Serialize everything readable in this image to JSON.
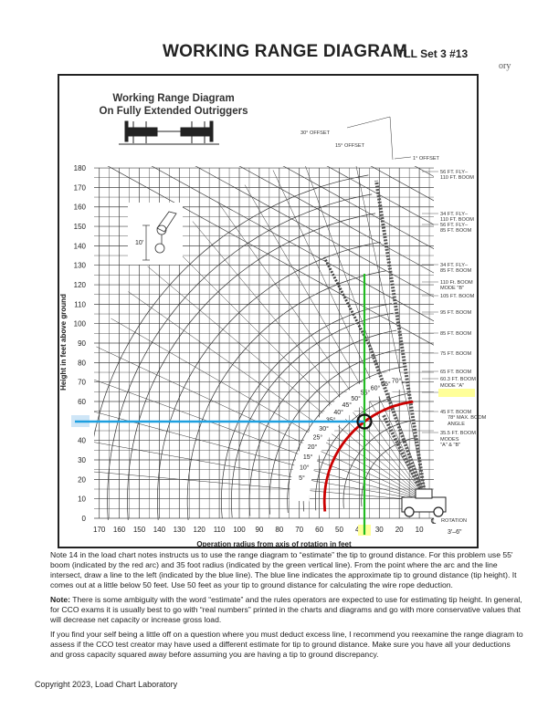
{
  "header": {
    "title": "WORKING RANGE DIAGRAM",
    "subtitle": "TLL  Set 3 #13",
    "stray_text": "ory"
  },
  "diagram": {
    "heading_line1": "Working Range Diagram",
    "heading_line2": "On Fully Extended Outriggers",
    "inset_dimension": "10'",
    "offsets": [
      "30° OFFSET",
      "15° OFFSET",
      "1° OFFSET"
    ],
    "y_axis_title": "Height in feet above ground",
    "x_axis_title": "Operation radius from axis of rotation in feet",
    "y_ticks": [
      "0",
      "10",
      "20",
      "30",
      "40",
      "50",
      "60",
      "70",
      "80",
      "90",
      "100",
      "110",
      "120",
      "130",
      "140",
      "150",
      "160",
      "170",
      "180"
    ],
    "x_ticks": [
      "170",
      "160",
      "150",
      "140",
      "130",
      "120",
      "110",
      "100",
      "90",
      "80",
      "70",
      "60",
      "50",
      "40",
      "30",
      "20",
      "10"
    ],
    "angle_labels": [
      "5°",
      "10°",
      "15°",
      "20°",
      "25°",
      "30°",
      "35°",
      "40°",
      "45°",
      "50°",
      "55°",
      "60°",
      "65°",
      "70°"
    ],
    "boom_labels": [
      "56 FT. FLY–",
      "110 FT. BOOM",
      "34 FT. FLY–",
      "110 FT. BOOM",
      "56 FT. FLY–",
      "85 FT. BOOM",
      "34 FT. FLY–",
      "85 FT. BOOM",
      "110 Ft. BOOM",
      "MODE \"B\"",
      "105 FT. BOOM",
      "95 FT. BOOM",
      "85 FT. BOOM",
      "75 FT. BOOM",
      "65 FT. BOOM",
      "60.3 FT. BOOM",
      "MODE \"A\"",
      "55 FT. BOOM",
      "45 FT. BOOM",
      "78° MAX. BOOM",
      "ANGLE",
      "35.5 FT. BOOM",
      "MODES",
      "\"A\" & \"B\""
    ],
    "rotation_label": "ROTATION",
    "centerline_symbol": "℄",
    "dimension_3_6": "3'–6\"",
    "highlight_color": "#ffff99",
    "annotations": {
      "boom_length_ft": 55,
      "radius_ft": 35,
      "tip_height_ft": 50,
      "red_arc_color": "#cc0000",
      "green_line_color": "#22bb22",
      "blue_line_color": "#1ea0e0"
    }
  },
  "notes": {
    "p1": "Note 14 in the load chart notes instructs us to use the range diagram to “estimate” the tip to ground distance.  For this problem use 55' boom (indicated by the red arc) and 35 foot radius (indicated by the green vertical line).  From the point where the arc and the line intersect, draw a line to the left (indicated by the blue line).  The blue line  indicates the approximate tip to ground distance (tip height).  It comes out at a little below 50 feet.  Use 50 feet as your tip to ground distance for calculating the wire rope deduction.",
    "p2_label": "Note:",
    "p2": "  There is some ambiguity with the word “estimate” and the rules operators are expected to use for estimating tip height.  In general, for CCO exams it is usually best to go with “real numbers” printed in the charts and diagrams and go with more conservative values that will decrease net capacity or increase gross load.",
    "p3": "If you find your self being a little off on a question where you must deduct excess line, I recommend you reexamine the range diagram to assess if the CCO test creator may have used a different estimate for tip to ground distance. Make sure you have all your deductions and gross capacity squared away before assuming you are having a tip to ground discrepancy."
  },
  "footer": {
    "copyright": "Copyright 2023, Load Chart Laboratory"
  }
}
